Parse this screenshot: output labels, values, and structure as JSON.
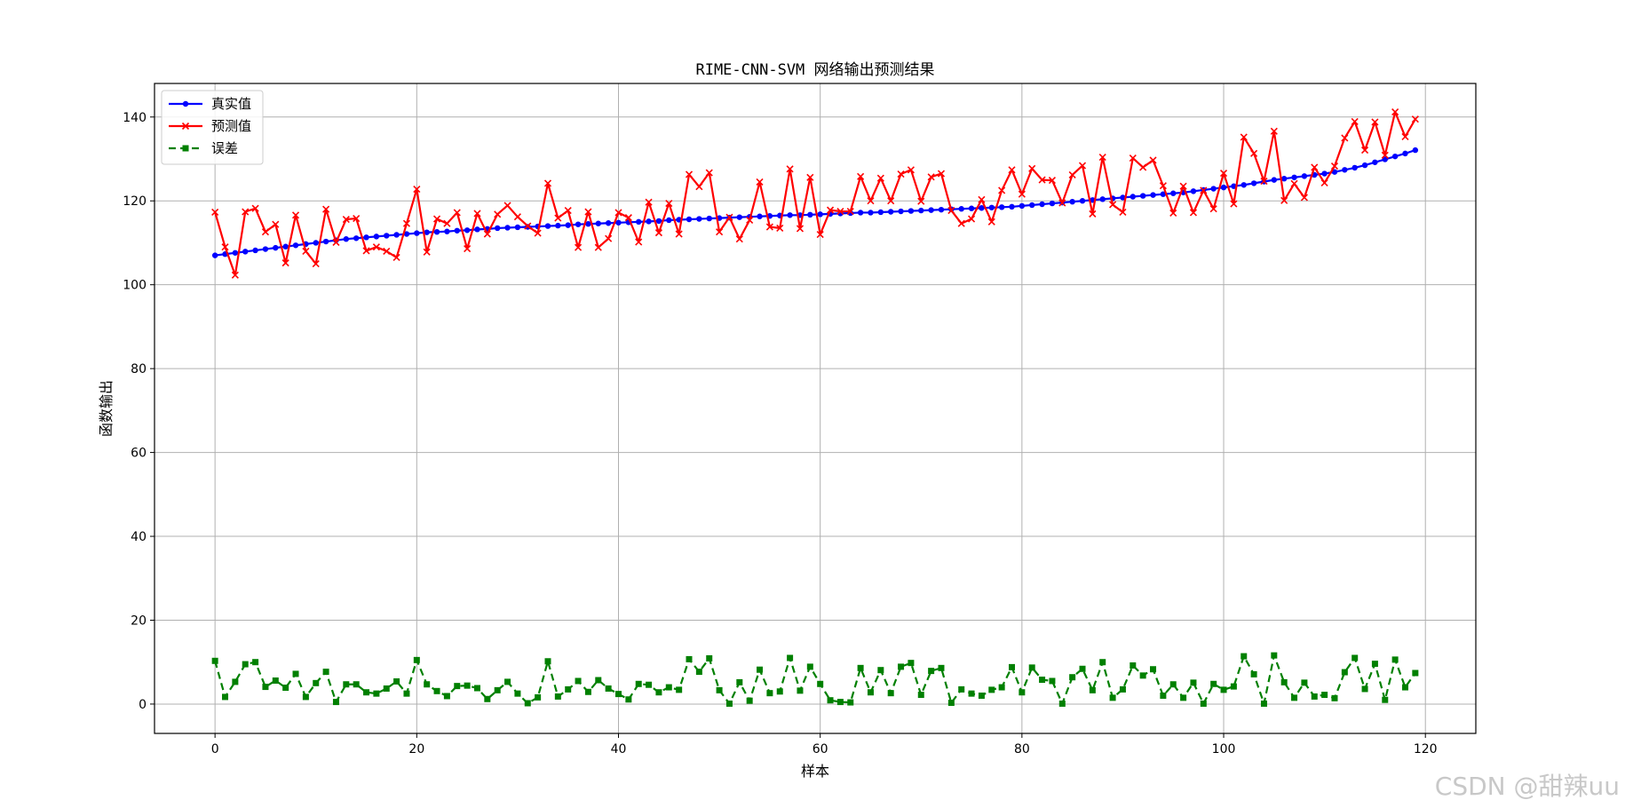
{
  "chart_data": {
    "type": "line",
    "title": "RIME-CNN-SVM 网络输出预测结果",
    "xlabel": "样本",
    "ylabel": "函数输出",
    "xlim": [
      -6,
      125
    ],
    "ylim": [
      -7,
      148
    ],
    "xticks": [
      0,
      20,
      40,
      60,
      80,
      100,
      120
    ],
    "yticks": [
      0,
      20,
      40,
      60,
      80,
      100,
      120,
      140
    ],
    "grid": true,
    "legend_position": "top-left",
    "x": [
      0,
      1,
      2,
      3,
      4,
      5,
      6,
      7,
      8,
      9,
      10,
      11,
      12,
      13,
      14,
      15,
      16,
      17,
      18,
      19,
      20,
      21,
      22,
      23,
      24,
      25,
      26,
      27,
      28,
      29,
      30,
      31,
      32,
      33,
      34,
      35,
      36,
      37,
      38,
      39,
      40,
      41,
      42,
      43,
      44,
      45,
      46,
      47,
      48,
      49,
      50,
      51,
      52,
      53,
      54,
      55,
      56,
      57,
      58,
      59,
      60,
      61,
      62,
      63,
      64,
      65,
      66,
      67,
      68,
      69,
      70,
      71,
      72,
      73,
      74,
      75,
      76,
      77,
      78,
      79,
      80,
      81,
      82,
      83,
      84,
      85,
      86,
      87,
      88,
      89,
      90,
      91,
      92,
      93,
      94,
      95,
      96,
      97,
      98,
      99,
      100,
      101,
      102,
      103,
      104,
      105,
      106,
      107,
      108,
      109,
      110,
      111,
      112,
      113,
      114,
      115,
      116,
      117,
      118,
      119
    ],
    "series": [
      {
        "name": "真实值",
        "color": "#0000ff",
        "line_style": "solid",
        "marker": "dot",
        "values": [
          107.0,
          107.3,
          107.6,
          107.9,
          108.2,
          108.5,
          108.8,
          109.1,
          109.4,
          109.7,
          110.0,
          110.3,
          110.6,
          110.9,
          111.1,
          111.3,
          111.5,
          111.7,
          111.9,
          112.1,
          112.3,
          112.5,
          112.6,
          112.7,
          112.9,
          113.0,
          113.2,
          113.3,
          113.5,
          113.6,
          113.7,
          113.8,
          113.9,
          114.0,
          114.1,
          114.2,
          114.4,
          114.5,
          114.6,
          114.7,
          114.8,
          114.9,
          115.0,
          115.1,
          115.2,
          115.4,
          115.5,
          115.6,
          115.7,
          115.8,
          115.9,
          116.0,
          116.1,
          116.2,
          116.3,
          116.4,
          116.5,
          116.6,
          116.6,
          116.7,
          116.8,
          116.9,
          117.0,
          117.1,
          117.2,
          117.2,
          117.3,
          117.4,
          117.5,
          117.6,
          117.7,
          117.8,
          117.9,
          118.0,
          118.1,
          118.2,
          118.3,
          118.4,
          118.5,
          118.6,
          118.8,
          119.0,
          119.2,
          119.4,
          119.6,
          119.8,
          120.0,
          120.2,
          120.4,
          120.6,
          120.8,
          121.0,
          121.2,
          121.4,
          121.6,
          121.8,
          122.0,
          122.3,
          122.6,
          122.9,
          123.2,
          123.5,
          123.8,
          124.2,
          124.6,
          125.0,
          125.3,
          125.6,
          125.9,
          126.2,
          126.5,
          126.9,
          127.4,
          127.9,
          128.5,
          129.2,
          129.9,
          130.6,
          131.3,
          132.1
        ]
      },
      {
        "name": "预测值",
        "color": "#ff0000",
        "line_style": "solid",
        "marker": "x",
        "values": [
          117.3,
          109.0,
          102.3,
          117.4,
          118.2,
          112.6,
          114.4,
          105.2,
          116.6,
          108.0,
          105.0,
          118.0,
          110.1,
          115.6,
          115.8,
          108.1,
          109.0,
          108.0,
          106.5,
          114.6,
          122.8,
          107.8,
          115.7,
          114.6,
          117.2,
          108.6,
          117.0,
          112.1,
          116.8,
          118.9,
          116.2,
          114.0,
          112.3,
          124.2,
          115.9,
          117.7,
          108.9,
          117.4,
          108.9,
          111.0,
          117.2,
          116.0,
          110.2,
          119.7,
          112.4,
          119.4,
          112.1,
          126.3,
          123.4,
          126.7,
          112.6,
          116.1,
          110.9,
          115.4,
          124.5,
          113.8,
          113.5,
          127.6,
          113.4,
          125.6,
          112.0,
          117.8,
          117.5,
          117.5,
          125.8,
          120.0,
          125.4,
          120.0,
          126.4,
          127.4,
          119.9,
          125.7,
          126.5,
          117.7,
          114.6,
          115.7,
          120.3,
          115.0,
          122.5,
          127.4,
          121.6,
          127.7,
          125.0,
          124.9,
          119.5,
          126.2,
          128.4,
          116.9,
          130.4,
          119.1,
          117.3,
          130.2,
          128.0,
          129.7,
          123.6,
          117.1,
          123.5,
          117.2,
          122.5,
          118.1,
          126.6,
          119.3,
          135.2,
          131.3,
          124.7,
          136.6,
          120.1,
          124.1,
          120.8,
          128.0,
          124.3,
          128.3,
          135.0,
          138.9,
          132.1,
          138.8,
          130.9,
          141.2,
          135.3,
          139.5
        ]
      },
      {
        "name": "误差",
        "color": "#008000",
        "line_style": "dashed",
        "marker": "square",
        "values": [
          10.3,
          1.7,
          5.3,
          9.5,
          10.0,
          4.1,
          5.6,
          3.9,
          7.2,
          1.7,
          5.0,
          7.7,
          0.5,
          4.7,
          4.7,
          2.8,
          2.5,
          3.7,
          5.4,
          2.5,
          10.5,
          4.7,
          3.1,
          1.9,
          4.3,
          4.4,
          3.8,
          1.2,
          3.3,
          5.3,
          2.5,
          0.2,
          1.6,
          10.2,
          1.8,
          3.5,
          5.5,
          2.9,
          5.7,
          3.7,
          2.4,
          1.1,
          4.8,
          4.6,
          2.8,
          4.0,
          3.4,
          10.7,
          7.7,
          10.9,
          3.3,
          0.1,
          5.2,
          0.8,
          8.2,
          2.6,
          3.0,
          11.0,
          3.2,
          8.9,
          4.8,
          0.9,
          0.5,
          0.4,
          8.6,
          2.8,
          8.1,
          2.6,
          8.9,
          9.8,
          2.2,
          7.9,
          8.6,
          0.3,
          3.5,
          2.5,
          2.0,
          3.4,
          4.0,
          8.8,
          2.8,
          8.7,
          5.8,
          5.5,
          0.1,
          6.4,
          8.4,
          3.3,
          10.0,
          1.5,
          3.5,
          9.2,
          6.8,
          8.3,
          2.0,
          4.7,
          1.5,
          5.1,
          0.1,
          4.8,
          3.4,
          4.2,
          11.4,
          7.1,
          0.1,
          11.6,
          5.2,
          1.5,
          5.1,
          1.8,
          2.2,
          1.4,
          7.6,
          11.0,
          3.6,
          9.6,
          1.0,
          10.6,
          4.0,
          7.4
        ]
      }
    ]
  },
  "watermark": "CSDN @甜辣uu"
}
